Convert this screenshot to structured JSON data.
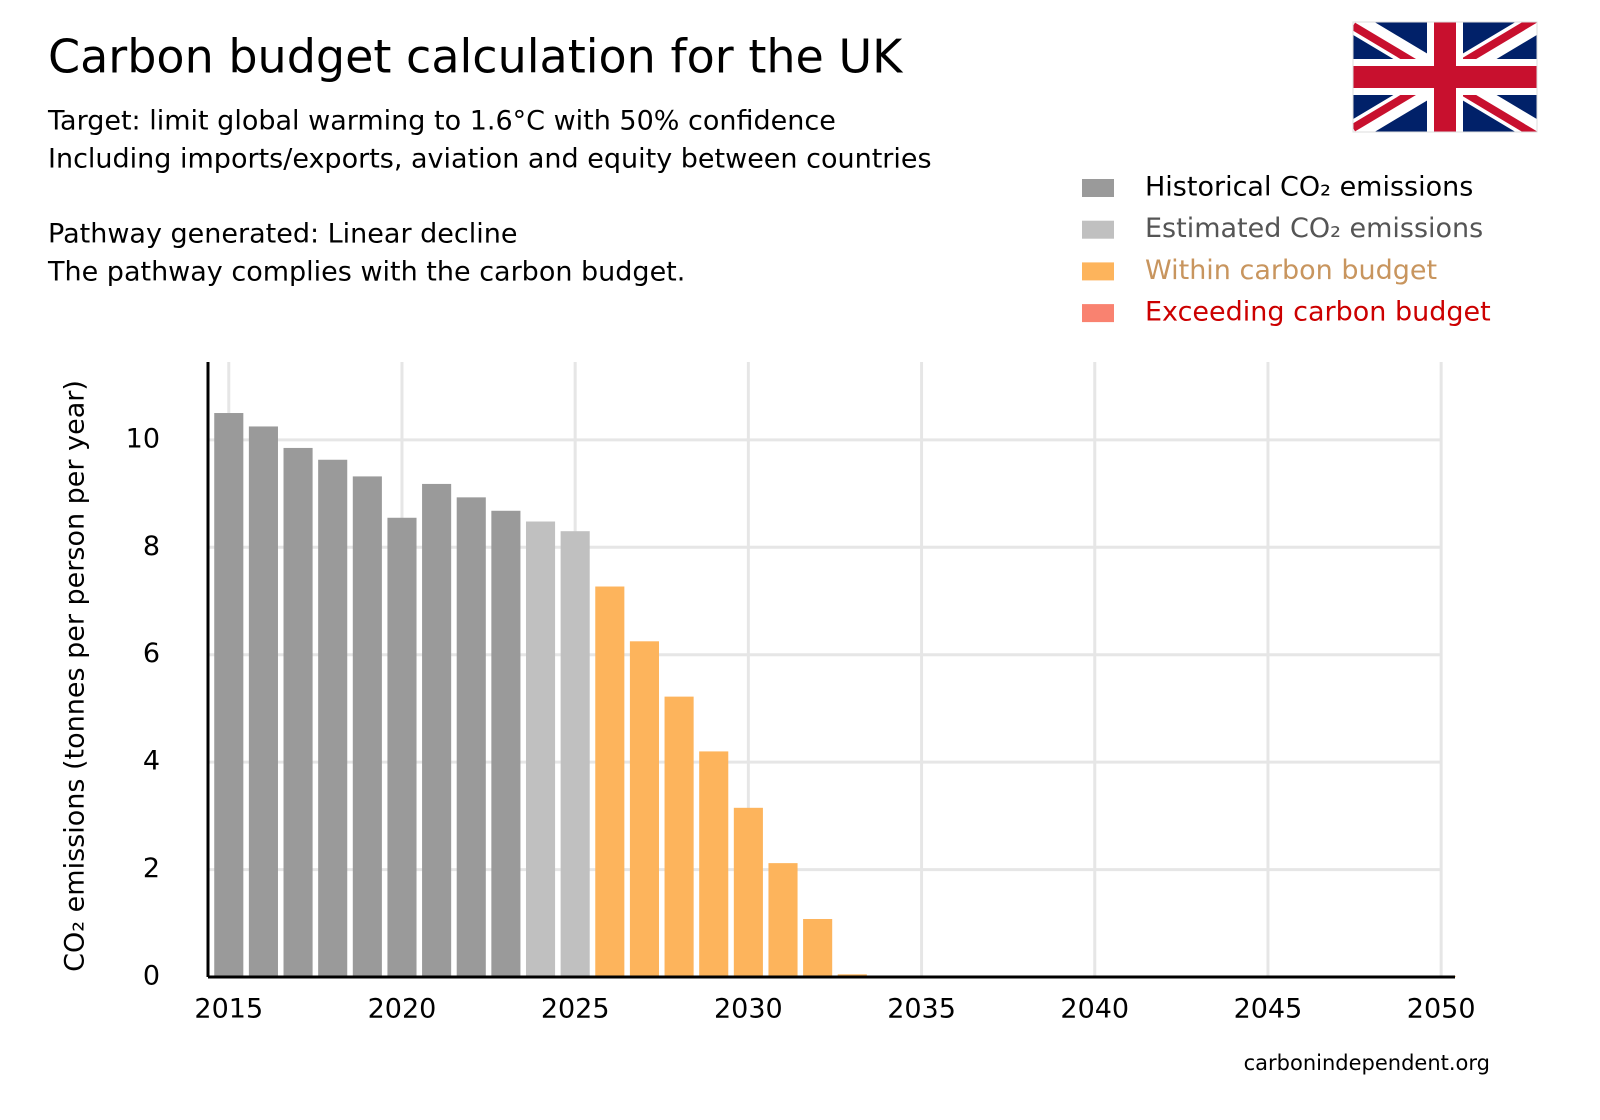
{
  "chart_data": {
    "type": "bar",
    "title": "Carbon budget calculation for the UK",
    "subtitle_lines": [
      "Target: limit global warming to 1.6°C with 50% confidence",
      "Including imports/exports, aviation and equity between countries",
      "Pathway generated: Linear decline",
      "The pathway complies with the carbon budget."
    ],
    "y_label": "CO₂ emissions (tonnes per person per year)",
    "source": "carbonindependent.org",
    "x": [
      2015,
      2016,
      2017,
      2018,
      2019,
      2020,
      2021,
      2022,
      2023,
      2024,
      2025,
      2026,
      2027,
      2028,
      2029,
      2030,
      2031,
      2032,
      2033,
      2034,
      2035,
      2036,
      2037,
      2038,
      2039,
      2040,
      2041,
      2042,
      2043,
      2044,
      2045,
      2046,
      2047,
      2048,
      2049,
      2050
    ],
    "series": [
      {
        "name": "Historical CO₂ emissions",
        "color": "#9a9a9a",
        "label_color": "#000000",
        "values": [
          10.5,
          10.25,
          9.85,
          9.63,
          9.32,
          8.55,
          9.18,
          8.93,
          8.68,
          null,
          null,
          null,
          null,
          null,
          null,
          null,
          null,
          null,
          null,
          null,
          null,
          null,
          null,
          null,
          null,
          null,
          null,
          null,
          null,
          null,
          null,
          null,
          null,
          null,
          null,
          null
        ]
      },
      {
        "name": "Estimated CO₂ emissions",
        "color": "#c0c0c0",
        "label_color": "#555555",
        "values": [
          null,
          null,
          null,
          null,
          null,
          null,
          null,
          null,
          null,
          8.48,
          8.3,
          null,
          null,
          null,
          null,
          null,
          null,
          null,
          null,
          null,
          null,
          null,
          null,
          null,
          null,
          null,
          null,
          null,
          null,
          null,
          null,
          null,
          null,
          null,
          null,
          null
        ]
      },
      {
        "name": "Within carbon budget",
        "color": "#fdb45c",
        "label_color": "#c8955e",
        "values": [
          null,
          null,
          null,
          null,
          null,
          null,
          null,
          null,
          null,
          null,
          null,
          7.27,
          6.25,
          5.22,
          4.2,
          3.15,
          2.12,
          1.08,
          0.05,
          0,
          0,
          0,
          0,
          0,
          0,
          0,
          0,
          0,
          0,
          0,
          0,
          0,
          0,
          0,
          0,
          0.02
        ]
      },
      {
        "name": "Exceeding carbon budget",
        "color": "#f98270",
        "label_color": "#cc0000",
        "values": [
          null,
          null,
          null,
          null,
          null,
          null,
          null,
          null,
          null,
          null,
          null,
          null,
          null,
          null,
          null,
          null,
          null,
          null,
          null,
          null,
          null,
          null,
          null,
          null,
          null,
          null,
          null,
          null,
          null,
          null,
          null,
          null,
          null,
          null,
          null,
          null
        ]
      }
    ],
    "xlim": [
      2014.4,
      2050.4
    ],
    "xticks": [
      2015,
      2020,
      2025,
      2030,
      2035,
      2040,
      2045,
      2050
    ],
    "ylim": [
      0,
      11.45
    ],
    "yticks": [
      0,
      2,
      4,
      6,
      8,
      10
    ],
    "grid": true
  }
}
